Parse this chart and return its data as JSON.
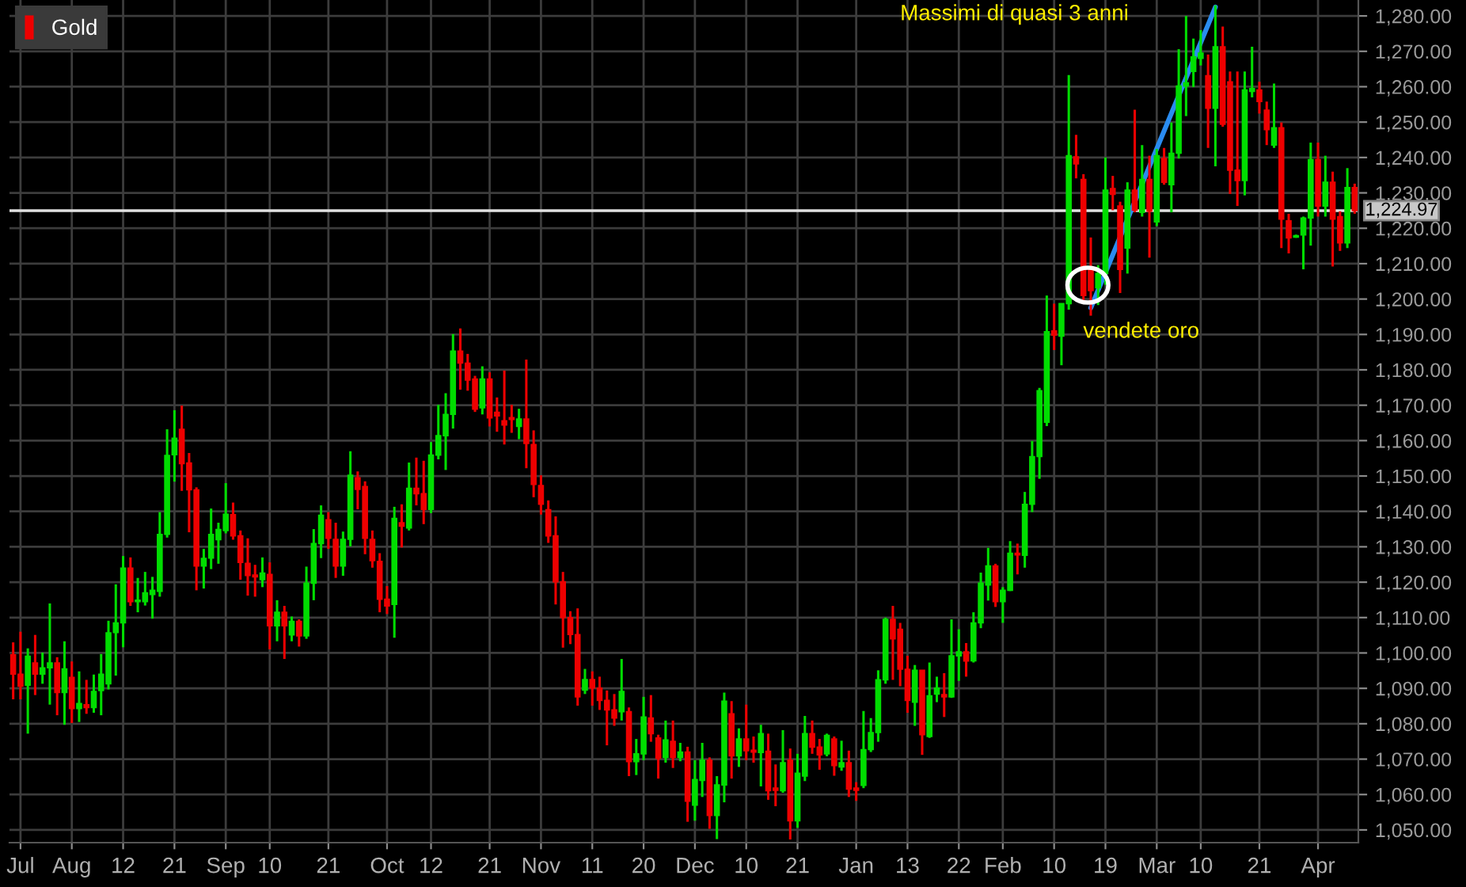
{
  "chart_data": {
    "type": "candlestick",
    "categories": [
      null,
      "Jul",
      null,
      null,
      null,
      null,
      null,
      null,
      "Aug",
      null,
      null,
      null,
      null,
      null,
      null,
      "12",
      null,
      null,
      null,
      null,
      null,
      null,
      "21",
      null,
      null,
      null,
      null,
      null,
      null,
      "Sep",
      null,
      null,
      null,
      null,
      null,
      "10",
      null,
      null,
      null,
      null,
      null,
      null,
      null,
      "21",
      null,
      null,
      null,
      null,
      null,
      null,
      null,
      "Oct",
      null,
      null,
      null,
      null,
      null,
      "12",
      null,
      null,
      null,
      null,
      null,
      null,
      null,
      "21",
      null,
      null,
      null,
      null,
      null,
      null,
      "Nov",
      null,
      null,
      null,
      null,
      null,
      null,
      "11",
      null,
      null,
      null,
      null,
      null,
      null,
      "20",
      null,
      null,
      null,
      null,
      null,
      null,
      "Dec",
      null,
      null,
      null,
      null,
      null,
      null,
      "10",
      null,
      null,
      null,
      null,
      null,
      null,
      "21",
      null,
      null,
      null,
      null,
      null,
      null,
      null,
      "Jan",
      null,
      null,
      null,
      null,
      null,
      null,
      "13",
      null,
      null,
      null,
      null,
      null,
      null,
      "22",
      null,
      null,
      null,
      null,
      null,
      "Feb",
      null,
      null,
      null,
      null,
      null,
      null,
      "10",
      null,
      null,
      null,
      null,
      null,
      null,
      "19",
      null,
      null,
      null,
      null,
      null,
      null,
      "Mar",
      null,
      null,
      null,
      null,
      null,
      "10",
      null,
      null,
      null,
      null,
      null,
      null,
      null,
      "21",
      null,
      null,
      null,
      null,
      null,
      null,
      null,
      "Apr",
      null,
      null,
      null,
      null,
      null
    ],
    "series": [
      {
        "name": "Gold",
        "ohlc": [
          [
            1099.5,
            1103.0,
            1086.9,
            1094.0
          ],
          [
            1094.0,
            1106.0,
            1086.9,
            1090.6
          ],
          [
            1090.9,
            1101.3,
            1077.2,
            1099.1
          ],
          [
            1097.2,
            1105.1,
            1088.1,
            1094.0
          ],
          [
            1094.0,
            1100.1,
            1091.3,
            1095.8
          ],
          [
            1095.8,
            1114.0,
            1085.4,
            1097.2
          ],
          [
            1097.2,
            1098.8,
            1082.4,
            1088.8
          ],
          [
            1088.8,
            1103.3,
            1079.7,
            1095.5
          ],
          [
            1093.1,
            1097.6,
            1080.2,
            1084.3
          ],
          [
            1084.3,
            1094.8,
            1080.5,
            1085.7
          ],
          [
            1085.4,
            1092.4,
            1082.8,
            1084.6
          ],
          [
            1084.6,
            1093.9,
            1083.1,
            1089.1
          ],
          [
            1089.4,
            1099.7,
            1082.4,
            1094.0
          ],
          [
            1091.3,
            1109.1,
            1089.7,
            1105.7
          ],
          [
            1105.8,
            1119.4,
            1093.6,
            1108.5
          ],
          [
            1108.5,
            1127.4,
            1101.6,
            1124.0
          ],
          [
            1124.0,
            1127.0,
            1113.3,
            1114.5
          ],
          [
            1114.5,
            1121.2,
            1111.5,
            1114.9
          ],
          [
            1114.5,
            1122.9,
            1113.4,
            1117.0
          ],
          [
            1116.5,
            1121.5,
            1109.7,
            1117.7
          ],
          [
            1117.4,
            1139.8,
            1115.9,
            1133.5
          ],
          [
            1133.5,
            1163.2,
            1132.6,
            1155.8
          ],
          [
            1156.0,
            1168.6,
            1148.4,
            1160.7
          ],
          [
            1163.2,
            1169.9,
            1145.8,
            1153.5
          ],
          [
            1153.7,
            1156.5,
            1134.1,
            1146.1
          ],
          [
            1146.1,
            1146.8,
            1117.7,
            1124.6
          ],
          [
            1124.6,
            1129.4,
            1118.2,
            1126.7
          ],
          [
            1126.8,
            1140.8,
            1123.7,
            1133.5
          ],
          [
            1132.0,
            1136.8,
            1125.2,
            1134.9
          ],
          [
            1134.6,
            1148.0,
            1133.8,
            1139.2
          ],
          [
            1139.1,
            1142.5,
            1132.0,
            1133.1
          ],
          [
            1133.1,
            1134.6,
            1120.7,
            1125.6
          ],
          [
            1125.3,
            1132.4,
            1116.2,
            1121.9
          ],
          [
            1122.0,
            1124.9,
            1115.9,
            1121.5
          ],
          [
            1120.7,
            1127.0,
            1118.6,
            1122.6
          ],
          [
            1122.2,
            1125.6,
            1101.0,
            1107.7
          ],
          [
            1107.7,
            1114.9,
            1103.3,
            1111.5
          ],
          [
            1111.5,
            1113.3,
            1098.3,
            1107.7
          ],
          [
            1105.1,
            1110.3,
            1103.3,
            1108.9
          ],
          [
            1108.9,
            1109.5,
            1101.8,
            1104.8
          ],
          [
            1104.8,
            1124.4,
            1104.0,
            1119.7
          ],
          [
            1119.7,
            1135.0,
            1114.9,
            1130.9
          ],
          [
            1130.9,
            1141.7,
            1126.8,
            1138.9
          ],
          [
            1137.6,
            1139.8,
            1129.4,
            1132.4
          ],
          [
            1132.1,
            1136.8,
            1121.2,
            1124.6
          ],
          [
            1124.6,
            1134.3,
            1121.8,
            1132.1
          ],
          [
            1132.1,
            1157.0,
            1130.1,
            1150.2
          ],
          [
            1149.5,
            1151.3,
            1140.6,
            1146.2
          ],
          [
            1147.0,
            1148.5,
            1127.9,
            1132.4
          ],
          [
            1132.1,
            1134.6,
            1124.1,
            1126.1
          ],
          [
            1125.9,
            1128.2,
            1111.5,
            1115.2
          ],
          [
            1115.2,
            1118.9,
            1111.0,
            1113.3
          ],
          [
            1113.7,
            1141.3,
            1104.3,
            1138.0
          ],
          [
            1136.8,
            1142.0,
            1129.8,
            1135.8
          ],
          [
            1135.3,
            1153.8,
            1134.6,
            1146.5
          ],
          [
            1146.5,
            1155.2,
            1141.7,
            1145.0
          ],
          [
            1145.0,
            1154.3,
            1136.4,
            1140.6
          ],
          [
            1140.6,
            1159.6,
            1139.5,
            1155.9
          ],
          [
            1155.9,
            1170.1,
            1154.7,
            1161.4
          ],
          [
            1161.4,
            1173.4,
            1151.7,
            1167.4
          ],
          [
            1167.4,
            1190.1,
            1163.4,
            1185.3
          ],
          [
            1185.3,
            1191.7,
            1174.4,
            1181.9
          ],
          [
            1181.9,
            1184.5,
            1174.1,
            1177.1
          ],
          [
            1177.4,
            1178.3,
            1168.1,
            1168.9
          ],
          [
            1169.3,
            1181.0,
            1167.4,
            1177.4
          ],
          [
            1177.4,
            1179.3,
            1164.0,
            1166.4
          ],
          [
            1168.0,
            1172.2,
            1162.5,
            1167.0
          ],
          [
            1165.6,
            1179.8,
            1158.9,
            1164.4
          ],
          [
            1166.5,
            1170.1,
            1162.2,
            1166.0
          ],
          [
            1164.0,
            1169.0,
            1160.4,
            1166.1
          ],
          [
            1166.1,
            1182.9,
            1152.2,
            1159.2
          ],
          [
            1158.9,
            1162.9,
            1144.0,
            1147.6
          ],
          [
            1147.3,
            1150.2,
            1139.1,
            1142.0
          ],
          [
            1140.5,
            1143.1,
            1131.1,
            1133.1
          ],
          [
            1133.1,
            1138.6,
            1113.7,
            1120.1
          ],
          [
            1120.1,
            1122.9,
            1101.5,
            1110.0
          ],
          [
            1110.0,
            1111.8,
            1102.5,
            1105.2
          ],
          [
            1105.2,
            1112.6,
            1085.1,
            1087.6
          ],
          [
            1089.5,
            1095.5,
            1088.4,
            1092.5
          ],
          [
            1092.5,
            1094.8,
            1085.1,
            1090.1
          ],
          [
            1090.1,
            1093.3,
            1083.9,
            1086.6
          ],
          [
            1086.6,
            1089.4,
            1073.9,
            1083.9
          ],
          [
            1083.9,
            1088.4,
            1079.4,
            1081.6
          ],
          [
            1083.4,
            1098.3,
            1080.9,
            1089.1
          ],
          [
            1083.4,
            1084.6,
            1065.2,
            1069.3
          ],
          [
            1069.3,
            1075.7,
            1065.5,
            1071.5
          ],
          [
            1071.5,
            1087.6,
            1069.7,
            1081.9
          ],
          [
            1081.6,
            1088.1,
            1074.9,
            1077.2
          ],
          [
            1076.0,
            1076.9,
            1064.5,
            1070.2
          ],
          [
            1070.5,
            1080.9,
            1069.0,
            1075.4
          ],
          [
            1075.0,
            1080.9,
            1067.5,
            1070.5
          ],
          [
            1070.5,
            1074.6,
            1069.4,
            1072.0
          ],
          [
            1072.0,
            1073.5,
            1052.3,
            1058.1
          ],
          [
            1057.0,
            1069.7,
            1052.6,
            1064.2
          ],
          [
            1064.0,
            1074.6,
            1059.3,
            1069.7
          ],
          [
            1069.7,
            1070.5,
            1050.3,
            1054.1
          ],
          [
            1054.1,
            1065.2,
            1047.4,
            1062.7
          ],
          [
            1062.7,
            1088.8,
            1057.8,
            1086.4
          ],
          [
            1082.8,
            1086.4,
            1064.5,
            1070.9
          ],
          [
            1070.9,
            1078.7,
            1067.8,
            1075.7
          ],
          [
            1075.7,
            1085.4,
            1069.7,
            1072.4
          ],
          [
            1072.5,
            1076.4,
            1069.0,
            1072.0
          ],
          [
            1071.9,
            1079.7,
            1062.3,
            1077.2
          ],
          [
            1072.2,
            1077.2,
            1058.5,
            1061.1
          ],
          [
            1061.8,
            1068.5,
            1056.7,
            1061.2
          ],
          [
            1061.1,
            1078.2,
            1060.5,
            1069.0
          ],
          [
            1069.7,
            1073.0,
            1047.3,
            1052.6
          ],
          [
            1052.6,
            1071.5,
            1050.6,
            1066.0
          ],
          [
            1065.2,
            1082.2,
            1063.8,
            1077.2
          ],
          [
            1077.2,
            1080.9,
            1071.5,
            1073.4
          ],
          [
            1073.4,
            1075.7,
            1067.0,
            1071.2
          ],
          [
            1071.5,
            1077.2,
            1070.8,
            1076.7
          ],
          [
            1075.7,
            1076.4,
            1065.3,
            1068.2
          ],
          [
            1067.8,
            1075.2,
            1066.7,
            1069.0
          ],
          [
            1069.0,
            1072.4,
            1059.3,
            1061.5
          ],
          [
            1061.8,
            1063.5,
            1058.2,
            1061.2
          ],
          [
            1062.6,
            1083.6,
            1061.8,
            1072.7
          ],
          [
            1072.7,
            1081.6,
            1072.0,
            1077.5
          ],
          [
            1077.5,
            1095.1,
            1074.9,
            1092.4
          ],
          [
            1092.4,
            1110.0,
            1091.3,
            1109.5
          ],
          [
            1109.5,
            1113.3,
            1092.4,
            1104.0
          ],
          [
            1106.7,
            1108.5,
            1090.6,
            1095.4
          ],
          [
            1095.4,
            1099.2,
            1083.1,
            1086.6
          ],
          [
            1086.1,
            1096.6,
            1079.4,
            1095.1
          ],
          [
            1095.1,
            1095.1,
            1071.2,
            1076.9
          ],
          [
            1076.4,
            1097.3,
            1076.0,
            1087.9
          ],
          [
            1088.4,
            1093.3,
            1086.1,
            1090.1
          ],
          [
            1088.2,
            1094.3,
            1081.9,
            1087.6
          ],
          [
            1087.6,
            1109.5,
            1087.3,
            1099.2
          ],
          [
            1099.2,
            1106.7,
            1092.1,
            1100.3
          ],
          [
            1100.3,
            1102.8,
            1093.3,
            1097.7
          ],
          [
            1097.8,
            1111.5,
            1097.3,
            1108.5
          ],
          [
            1108.5,
            1122.7,
            1107.0,
            1119.7
          ],
          [
            1119.2,
            1129.7,
            1114.8,
            1124.6
          ],
          [
            1124.6,
            1125.2,
            1113.0,
            1114.5
          ],
          [
            1114.5,
            1118.6,
            1108.5,
            1117.7
          ],
          [
            1117.7,
            1131.6,
            1117.5,
            1128.2
          ],
          [
            1128.2,
            1130.9,
            1122.2,
            1127.7
          ],
          [
            1127.6,
            1145.5,
            1124.1,
            1142.0
          ],
          [
            1142.0,
            1159.9,
            1139.8,
            1155.5
          ],
          [
            1155.5,
            1174.9,
            1149.2,
            1174.1
          ],
          [
            1165.2,
            1201.0,
            1164.1,
            1190.8
          ],
          [
            1191.0,
            1198.7,
            1185.6,
            1189.8
          ],
          [
            1189.5,
            1198.7,
            1181.3,
            1198.7
          ],
          [
            1198.7,
            1263.3,
            1197.0,
            1240.5
          ],
          [
            1240.2,
            1246.4,
            1234.1,
            1238.2
          ],
          [
            1233.8,
            1235.3,
            1198.7,
            1201.0
          ],
          [
            1208.4,
            1217.4,
            1195.3,
            1202.4
          ],
          [
            1203.2,
            1209.6,
            1198.3,
            1207.2
          ],
          [
            1207.2,
            1240.0,
            1204.0,
            1230.8
          ],
          [
            1231.2,
            1234.8,
            1225.1,
            1229.6
          ],
          [
            1226.3,
            1227.5,
            1201.7,
            1208.4
          ],
          [
            1214.4,
            1233.0,
            1207.2,
            1230.8
          ],
          [
            1230.8,
            1253.5,
            1224.5,
            1225.1
          ],
          [
            1224.5,
            1243.5,
            1223.3,
            1233.8
          ],
          [
            1233.8,
            1240.5,
            1211.7,
            1224.8
          ],
          [
            1221.8,
            1242.4,
            1220.6,
            1240.5
          ],
          [
            1239.7,
            1242.7,
            1232.3,
            1233.0
          ],
          [
            1232.3,
            1249.9,
            1224.5,
            1241.2
          ],
          [
            1241.2,
            1270.6,
            1239.7,
            1260.2
          ],
          [
            1260.2,
            1280.0,
            1251.7,
            1261.1
          ],
          [
            1264.3,
            1273.6,
            1259.9,
            1268.4
          ],
          [
            1268.0,
            1276.0,
            1266.0,
            1269.5
          ],
          [
            1263.1,
            1269.1,
            1242.7,
            1253.9
          ],
          [
            1253.9,
            1283.0,
            1237.5,
            1271.3
          ],
          [
            1271.3,
            1277.0,
            1248.7,
            1249.4
          ],
          [
            1261.4,
            1264.3,
            1229.7,
            1236.4
          ],
          [
            1236.4,
            1264.3,
            1226.3,
            1233.5
          ],
          [
            1233.5,
            1264.3,
            1229.3,
            1259.1
          ],
          [
            1258.7,
            1271.3,
            1257.0,
            1259.5
          ],
          [
            1259.1,
            1261.4,
            1252.4,
            1255.8
          ],
          [
            1253.4,
            1255.8,
            1243.5,
            1247.9
          ],
          [
            1243.5,
            1260.9,
            1242.7,
            1248.4
          ],
          [
            1248.4,
            1249.9,
            1214.4,
            1222.6
          ],
          [
            1222.1,
            1224.1,
            1212.9,
            1217.3
          ],
          [
            1217.5,
            1218.2,
            1217.3,
            1217.9
          ],
          [
            1218.1,
            1223.3,
            1208.4,
            1222.9
          ],
          [
            1222.9,
            1244.2,
            1215.1,
            1239.4
          ],
          [
            1239.4,
            1244.2,
            1223.3,
            1226.3
          ],
          [
            1226.3,
            1240.5,
            1223.3,
            1233.0
          ],
          [
            1233.0,
            1236.0,
            1209.2,
            1222.6
          ],
          [
            1223.3,
            1224.8,
            1213.6,
            1215.9
          ],
          [
            1215.9,
            1237.0,
            1214.4,
            1231.5
          ],
          [
            1231.5,
            1232.6,
            1224.1,
            1224.97
          ]
        ],
        "colors": [
          "#ee0000",
          "#ee0000",
          "#00dd00",
          "#ee0000",
          "#00dd00",
          "#00dd00",
          "#ee0000",
          "#00dd00",
          "#ee0000",
          "#00dd00",
          "#ee0000",
          "#00dd00",
          "#00dd00",
          "#00dd00",
          "#00dd00",
          "#00dd00",
          "#ee0000",
          "#00dd00",
          "#00dd00",
          "#00dd00",
          "#00dd00",
          "#00dd00",
          "#00dd00",
          "#ee0000",
          "#ee0000",
          "#ee0000",
          "#00dd00",
          "#00dd00",
          "#00dd00",
          "#00dd00",
          "#ee0000",
          "#ee0000",
          "#ee0000",
          "#ee0000",
          "#00dd00",
          "#ee0000",
          "#00dd00",
          "#ee0000",
          "#00dd00",
          "#ee0000",
          "#00dd00",
          "#00dd00",
          "#00dd00",
          "#ee0000",
          "#ee0000",
          "#00dd00",
          "#00dd00",
          "#ee0000",
          "#ee0000",
          "#ee0000",
          "#ee0000",
          "#ee0000",
          "#00dd00",
          "#ee0000",
          "#00dd00",
          "#ee0000",
          "#ee0000",
          "#00dd00",
          "#00dd00",
          "#00dd00",
          "#00dd00",
          "#ee0000",
          "#ee0000",
          "#ee0000",
          "#00dd00",
          "#ee0000",
          "#ee0000",
          "#ee0000",
          "#ee0000",
          "#00dd00",
          "#ee0000",
          "#ee0000",
          "#ee0000",
          "#ee0000",
          "#ee0000",
          "#ee0000",
          "#ee0000",
          "#ee0000",
          "#00dd00",
          "#ee0000",
          "#ee0000",
          "#ee0000",
          "#ee0000",
          "#00dd00",
          "#ee0000",
          "#00dd00",
          "#00dd00",
          "#ee0000",
          "#ee0000",
          "#00dd00",
          "#ee0000",
          "#00dd00",
          "#ee0000",
          "#00dd00",
          "#00dd00",
          "#ee0000",
          "#00dd00",
          "#00dd00",
          "#ee0000",
          "#00dd00",
          "#ee0000",
          "#ee0000",
          "#00dd00",
          "#ee0000",
          "#ee0000",
          "#00dd00",
          "#ee0000",
          "#00dd00",
          "#00dd00",
          "#ee0000",
          "#ee0000",
          "#00dd00",
          "#ee0000",
          "#00dd00",
          "#ee0000",
          "#ee0000",
          "#00dd00",
          "#00dd00",
          "#00dd00",
          "#00dd00",
          "#ee0000",
          "#ee0000",
          "#ee0000",
          "#00dd00",
          "#ee0000",
          "#00dd00",
          "#00dd00",
          "#ee0000",
          "#00dd00",
          "#00dd00",
          "#ee0000",
          "#00dd00",
          "#00dd00",
          "#00dd00",
          "#ee0000",
          "#00dd00",
          "#00dd00",
          "#ee0000",
          "#00dd00",
          "#00dd00",
          "#00dd00",
          "#00dd00",
          "#ee0000",
          "#00dd00",
          "#00dd00",
          "#ee0000",
          "#ee0000",
          "#ee0000",
          "#00dd00",
          "#00dd00",
          "#ee0000",
          "#ee0000",
          "#00dd00",
          "#ee0000",
          "#00dd00",
          "#ee0000",
          "#00dd00",
          "#ee0000",
          "#00dd00",
          "#00dd00",
          "#00dd00",
          "#00dd00",
          "#00dd00",
          "#ee0000",
          "#00dd00",
          "#ee0000",
          "#ee0000",
          "#ee0000",
          "#00dd00",
          "#00dd00",
          "#ee0000",
          "#ee0000",
          "#00dd00",
          "#ee0000",
          "#ee0000",
          "#00dd00",
          "#00dd00",
          "#00dd00",
          "#ee0000",
          "#00dd00",
          "#ee0000",
          "#ee0000",
          "#00dd00",
          "#ee0000"
        ]
      },
      {
        "type": "line",
        "color": "#2a8cf0",
        "values": [
          null,
          null,
          null,
          null,
          null,
          null,
          null,
          null,
          null,
          null,
          null,
          null,
          null,
          null,
          null,
          null,
          null,
          null,
          null,
          null,
          null,
          null,
          null,
          null,
          null,
          null,
          null,
          null,
          null,
          null,
          null,
          null,
          null,
          null,
          null,
          null,
          null,
          null,
          null,
          null,
          null,
          null,
          null,
          null,
          null,
          null,
          null,
          null,
          null,
          null,
          null,
          null,
          null,
          null,
          null,
          null,
          null,
          null,
          null,
          null,
          null,
          null,
          null,
          null,
          null,
          null,
          null,
          null,
          null,
          null,
          null,
          null,
          null,
          null,
          null,
          null,
          null,
          null,
          null,
          null,
          null,
          null,
          null,
          null,
          null,
          null,
          null,
          null,
          null,
          null,
          null,
          null,
          null,
          null,
          null,
          null,
          null,
          null,
          null,
          null,
          null,
          null,
          null,
          null,
          null,
          null,
          null,
          null,
          null,
          null,
          null,
          null,
          null,
          null,
          null,
          null,
          null,
          null,
          null,
          null,
          null,
          null,
          null,
          null,
          null,
          null,
          null,
          null,
          null,
          null,
          null,
          null,
          null,
          null,
          null,
          null,
          null,
          null,
          null,
          null,
          null,
          null,
          null,
          null,
          null,
          null,
          null,
          1197.5,
          null,
          null,
          null,
          null,
          null,
          null,
          null,
          null,
          null,
          null,
          null,
          null,
          null,
          null,
          null,
          null,
          1282.5,
          null,
          null,
          null,
          null,
          null,
          null,
          null,
          null,
          null,
          null,
          null,
          null,
          null,
          null,
          null,
          null,
          null,
          null,
          null
        ]
      }
    ],
    "ylim": [
      1046.4,
      1284.5
    ],
    "yticks": [
      {
        "value": 1050,
        "label": "1,050.00"
      },
      {
        "value": 1060,
        "label": "1,060.00"
      },
      {
        "value": 1070,
        "label": "1,070.00"
      },
      {
        "value": 1080,
        "label": "1,080.00"
      },
      {
        "value": 1090,
        "label": "1,090.00"
      },
      {
        "value": 1100,
        "label": "1,100.00"
      },
      {
        "value": 1110,
        "label": "1,110.00"
      },
      {
        "value": 1120,
        "label": "1,120.00"
      },
      {
        "value": 1130,
        "label": "1,130.00"
      },
      {
        "value": 1140,
        "label": "1,140.00"
      },
      {
        "value": 1150,
        "label": "1,150.00"
      },
      {
        "value": 1160,
        "label": "1,160.00"
      },
      {
        "value": 1170,
        "label": "1,170.00"
      },
      {
        "value": 1180,
        "label": "1,180.00"
      },
      {
        "value": 1190,
        "label": "1,190.00"
      },
      {
        "value": 1200,
        "label": "1,200.00"
      },
      {
        "value": 1210,
        "label": "1,210.00"
      },
      {
        "value": 1220,
        "label": "1,220.00"
      },
      {
        "value": 1230,
        "label": "1,230.00"
      },
      {
        "value": 1240,
        "label": "1,240.00"
      },
      {
        "value": 1250,
        "label": "1,250.00"
      },
      {
        "value": 1260,
        "label": "1,260.00"
      },
      {
        "value": 1270,
        "label": "1,270.00"
      },
      {
        "value": 1280,
        "label": "1,280.00"
      }
    ],
    "ref_lines": [
      {
        "axis": "y",
        "value": 1224.97,
        "label": "1,224.97",
        "color": "#e0e0e0"
      }
    ],
    "annotations": [
      "Massimi di quasi 3 anni",
      "vendete oro"
    ],
    "grid": true,
    "legend": "top left"
  }
}
